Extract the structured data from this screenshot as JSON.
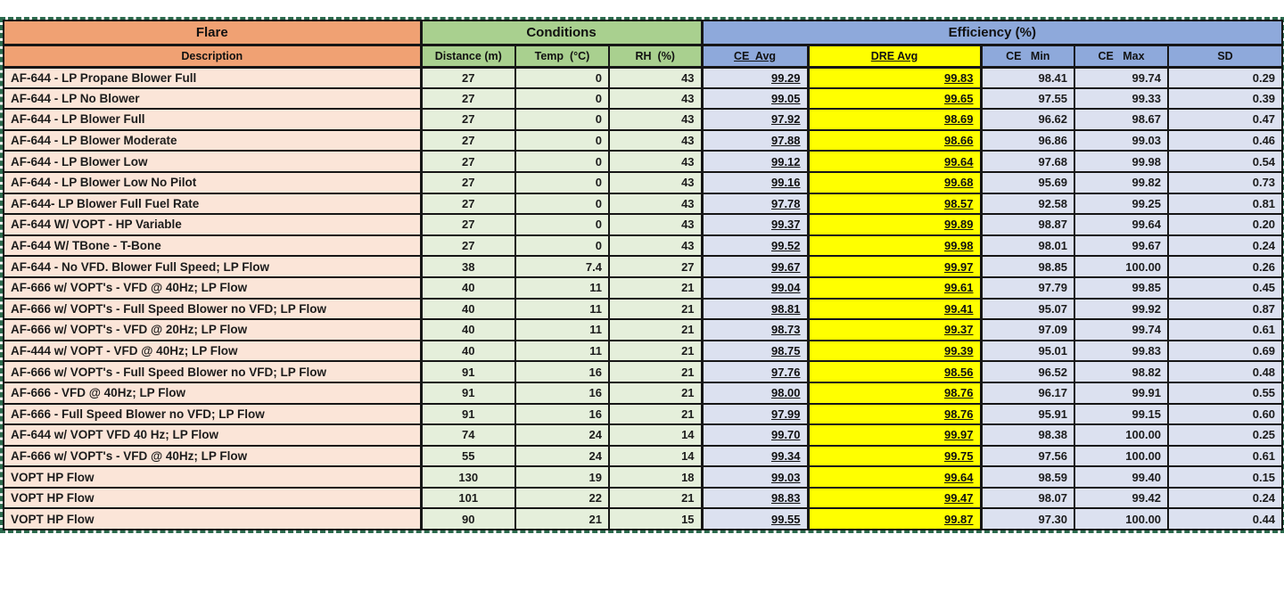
{
  "table": {
    "groups": [
      {
        "label": "Flare"
      },
      {
        "label": "Conditions"
      },
      {
        "label": "Efficiency (%)"
      }
    ],
    "columns": [
      {
        "key": "description",
        "label": "Description"
      },
      {
        "key": "distance",
        "label": "Distance (m)"
      },
      {
        "key": "temp",
        "label": "Temp  (°C)"
      },
      {
        "key": "rh",
        "label": "RH  (%)"
      },
      {
        "key": "ce_avg",
        "label": "CE  Avg"
      },
      {
        "key": "dre_avg",
        "label": "DRE Avg"
      },
      {
        "key": "ce_min",
        "label": "CE   Min"
      },
      {
        "key": "ce_max",
        "label": "CE   Max"
      },
      {
        "key": "sd",
        "label": "SD"
      }
    ],
    "rows": [
      [
        "AF-644 - LP Propane Blower Full",
        "27",
        "0",
        "43",
        "99.29",
        "99.83",
        "98.41",
        "99.74",
        "0.29"
      ],
      [
        "AF-644 - LP No Blower",
        "27",
        "0",
        "43",
        "99.05",
        "99.65",
        "97.55",
        "99.33",
        "0.39"
      ],
      [
        "AF-644 - LP Blower Full",
        "27",
        "0",
        "43",
        "97.92",
        "98.69",
        "96.62",
        "98.67",
        "0.47"
      ],
      [
        "AF-644 - LP Blower Moderate",
        "27",
        "0",
        "43",
        "97.88",
        "98.66",
        "96.86",
        "99.03",
        "0.46"
      ],
      [
        "AF-644 - LP Blower Low",
        "27",
        "0",
        "43",
        "99.12",
        "99.64",
        "97.68",
        "99.98",
        "0.54"
      ],
      [
        "AF-644 - LP Blower Low No Pilot",
        "27",
        "0",
        "43",
        "99.16",
        "99.68",
        "95.69",
        "99.82",
        "0.73"
      ],
      [
        "AF-644- LP Blower Full Fuel Rate",
        "27",
        "0",
        "43",
        "97.78",
        "98.57",
        "92.58",
        "99.25",
        "0.81"
      ],
      [
        "AF-644 W/ VOPT - HP Variable",
        "27",
        "0",
        "43",
        "99.37",
        "99.89",
        "98.87",
        "99.64",
        "0.20"
      ],
      [
        "AF-644 W/ TBone - T-Bone",
        "27",
        "0",
        "43",
        "99.52",
        "99.98",
        "98.01",
        "99.67",
        "0.24"
      ],
      [
        "AF-644 - No VFD. Blower Full Speed; LP Flow",
        "38",
        "7.4",
        "27",
        "99.67",
        "99.97",
        "98.85",
        "100.00",
        "0.26"
      ],
      [
        "AF-666 w/ VOPT's - VFD @ 40Hz; LP Flow",
        "40",
        "11",
        "21",
        "99.04",
        "99.61",
        "97.79",
        "99.85",
        "0.45"
      ],
      [
        "AF-666 w/ VOPT's - Full Speed Blower no VFD; LP Flow",
        "40",
        "11",
        "21",
        "98.81",
        "99.41",
        "95.07",
        "99.92",
        "0.87"
      ],
      [
        "AF-666 w/ VOPT's - VFD @ 20Hz; LP Flow",
        "40",
        "11",
        "21",
        "98.73",
        "99.37",
        "97.09",
        "99.74",
        "0.61"
      ],
      [
        "AF-444 w/ VOPT - VFD @ 40Hz; LP Flow",
        "40",
        "11",
        "21",
        "98.75",
        "99.39",
        "95.01",
        "99.83",
        "0.69"
      ],
      [
        "AF-666 w/ VOPT's - Full Speed Blower no VFD; LP Flow",
        "91",
        "16",
        "21",
        "97.76",
        "98.56",
        "96.52",
        "98.82",
        "0.48"
      ],
      [
        "AF-666 - VFD @ 40Hz; LP Flow",
        "91",
        "16",
        "21",
        "98.00",
        "98.76",
        "96.17",
        "99.91",
        "0.55"
      ],
      [
        "AF-666 - Full Speed Blower no VFD; LP Flow",
        "91",
        "16",
        "21",
        "97.99",
        "98.76",
        "95.91",
        "99.15",
        "0.60"
      ],
      [
        "AF-644 w/ VOPT VFD 40 Hz; LP Flow",
        "74",
        "24",
        "14",
        "99.70",
        "99.97",
        "98.38",
        "100.00",
        "0.25"
      ],
      [
        "AF-666 w/ VOPT's - VFD @ 40Hz; LP Flow",
        "55",
        "24",
        "14",
        "99.34",
        "99.75",
        "97.56",
        "100.00",
        "0.61"
      ],
      [
        "VOPT HP Flow",
        "130",
        "19",
        "18",
        "99.03",
        "99.64",
        "98.59",
        "99.40",
        "0.15"
      ],
      [
        "VOPT HP Flow",
        "101",
        "22",
        "21",
        "98.83",
        "99.47",
        "98.07",
        "99.42",
        "0.24"
      ],
      [
        "VOPT HP Flow",
        "90",
        "21",
        "15",
        "99.55",
        "99.87",
        "97.30",
        "100.00",
        "0.44"
      ]
    ]
  },
  "colors": {
    "flare_header": "#f0a173",
    "flare_body": "#fbe5d8",
    "conditions_header": "#a9d08f",
    "conditions_body": "#e5efdb",
    "efficiency_header": "#8ea9db",
    "efficiency_body": "#dce1f0",
    "highlight_yellow": "#ffff00",
    "selection_marquee_green": "#2b6a4d",
    "grid_border": "#161616",
    "avg_header_text": "#1f3864"
  }
}
